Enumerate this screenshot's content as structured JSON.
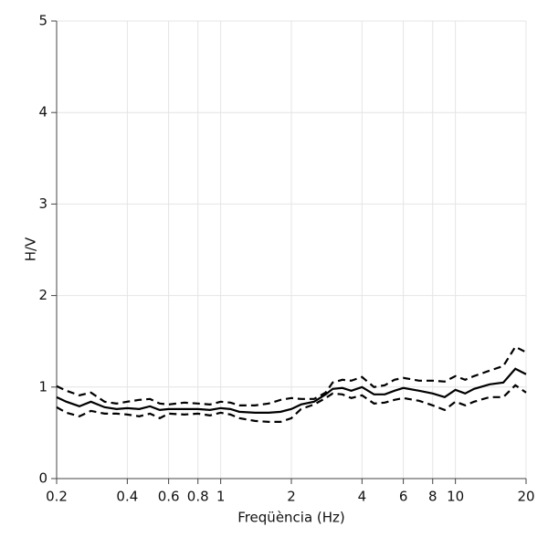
{
  "chart_data": {
    "type": "line",
    "x_label": "Freqüència (Hz)",
    "y_label": "H/V",
    "x_scale": "log",
    "x": [
      0.2,
      0.22,
      0.25,
      0.28,
      0.32,
      0.36,
      0.4,
      0.45,
      0.5,
      0.55,
      0.6,
      0.7,
      0.8,
      0.9,
      1,
      1.1,
      1.2,
      1.4,
      1.6,
      1.8,
      2,
      2.2,
      2.5,
      2.8,
      3,
      3.3,
      3.6,
      4,
      4.5,
      5,
      5.5,
      6,
      7,
      8,
      9,
      10,
      11,
      12,
      14,
      16,
      18,
      20
    ],
    "series": [
      {
        "color": "#000000",
        "dashed": false,
        "values": [
          0.89,
          0.84,
          0.79,
          0.84,
          0.78,
          0.76,
          0.77,
          0.76,
          0.79,
          0.75,
          0.76,
          0.76,
          0.76,
          0.75,
          0.77,
          0.76,
          0.73,
          0.72,
          0.72,
          0.73,
          0.76,
          0.81,
          0.84,
          0.92,
          0.98,
          0.99,
          0.96,
          1.0,
          0.92,
          0.92,
          0.96,
          0.99,
          0.96,
          0.93,
          0.89,
          0.97,
          0.93,
          0.98,
          1.03,
          1.05,
          1.2,
          1.14
        ]
      },
      {
        "color": "#000000",
        "dashed": true,
        "values": [
          1.01,
          0.96,
          0.91,
          0.94,
          0.84,
          0.82,
          0.84,
          0.86,
          0.87,
          0.82,
          0.81,
          0.83,
          0.82,
          0.81,
          0.84,
          0.83,
          0.8,
          0.8,
          0.82,
          0.86,
          0.88,
          0.87,
          0.87,
          0.94,
          1.05,
          1.08,
          1.07,
          1.11,
          1.0,
          1.02,
          1.08,
          1.1,
          1.07,
          1.07,
          1.06,
          1.12,
          1.08,
          1.12,
          1.18,
          1.23,
          1.44,
          1.38
        ]
      },
      {
        "color": "#000000",
        "dashed": true,
        "values": [
          0.78,
          0.72,
          0.68,
          0.74,
          0.71,
          0.71,
          0.7,
          0.68,
          0.71,
          0.66,
          0.71,
          0.7,
          0.71,
          0.69,
          0.72,
          0.7,
          0.66,
          0.63,
          0.62,
          0.62,
          0.66,
          0.76,
          0.81,
          0.88,
          0.93,
          0.92,
          0.88,
          0.91,
          0.82,
          0.83,
          0.86,
          0.88,
          0.85,
          0.8,
          0.75,
          0.84,
          0.8,
          0.84,
          0.89,
          0.89,
          1.02,
          0.94
        ]
      }
    ],
    "xlim": [
      0.2,
      20
    ],
    "ylim": [
      0,
      5
    ],
    "xticks": [
      0.2,
      0.4,
      0.6,
      0.8,
      1,
      2,
      4,
      6,
      8,
      10,
      20
    ],
    "yticks": [
      0,
      1,
      2,
      3,
      4,
      5
    ],
    "grid": true
  }
}
